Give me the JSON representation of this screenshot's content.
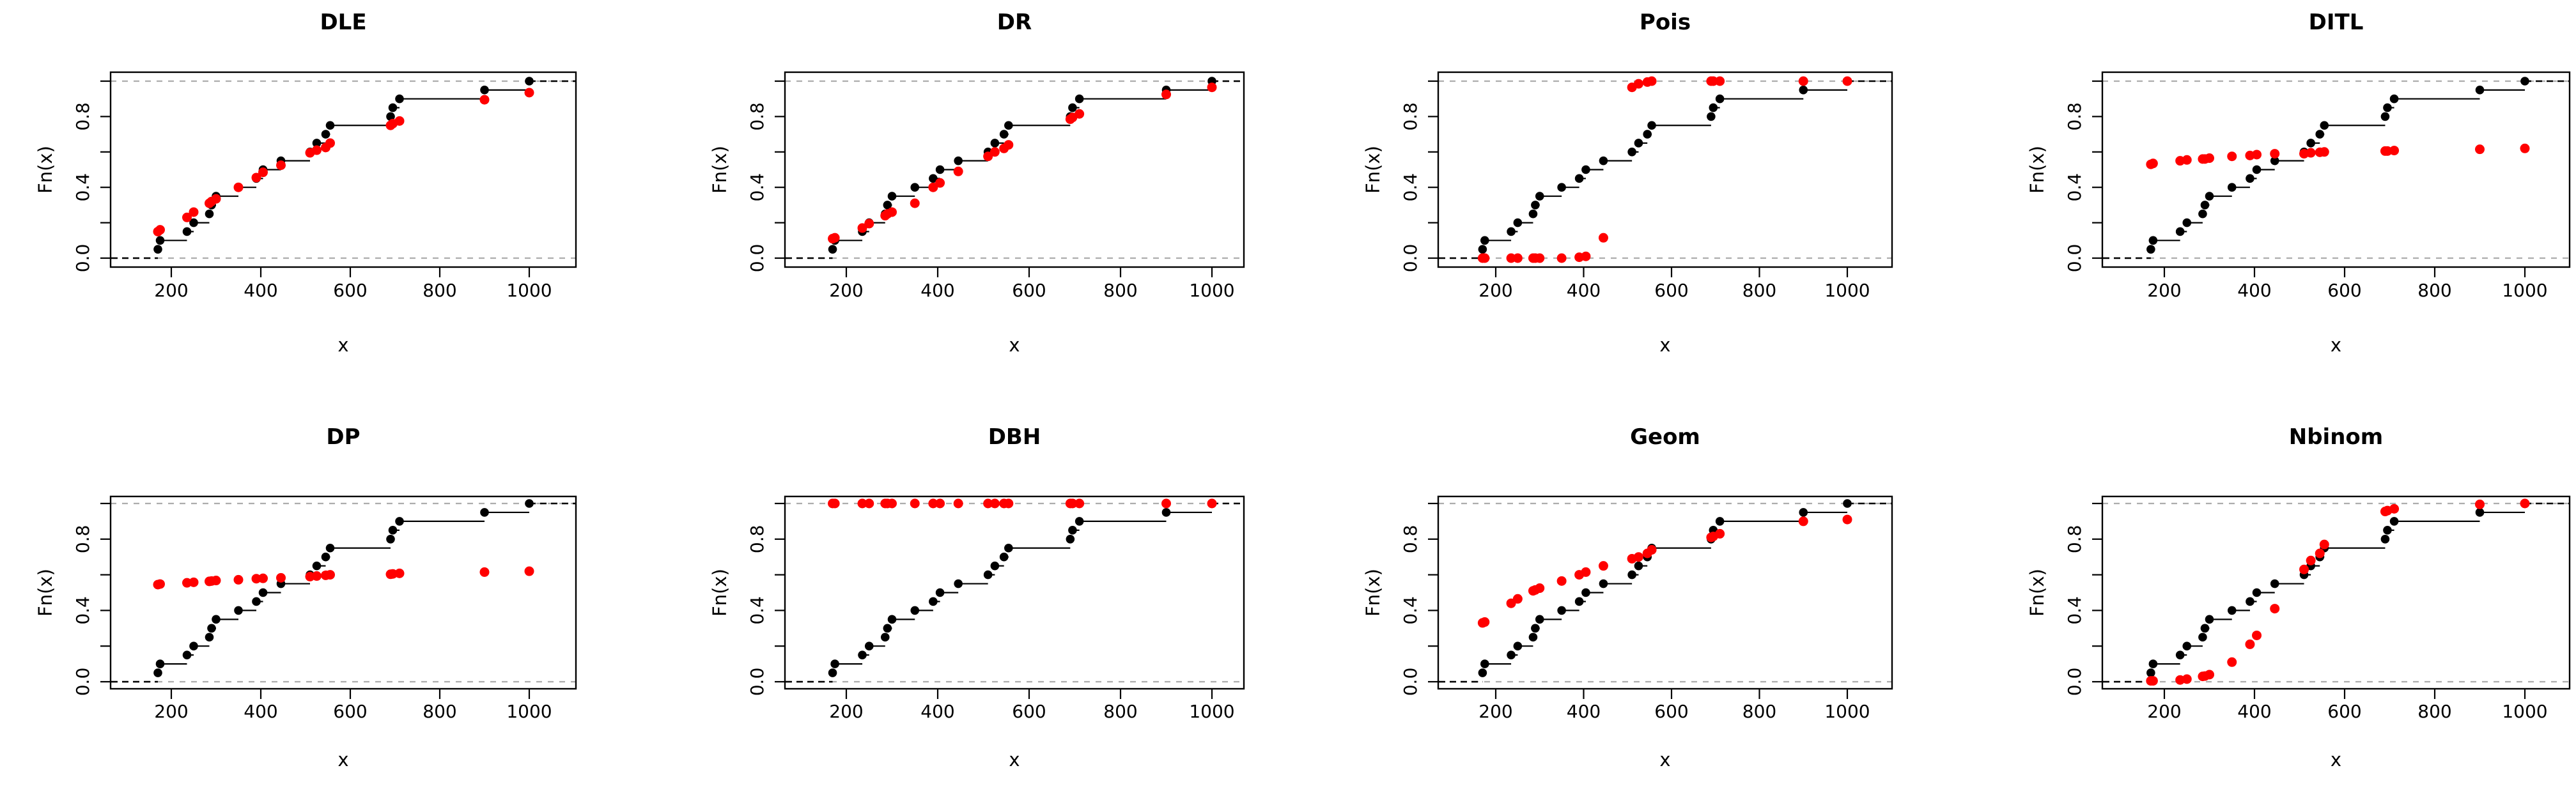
{
  "chart_data": {
    "type": "line",
    "subtype": "ecdf_step_functions_with_fitted_cdf_points",
    "grid_layout": "2 rows x 4 columns",
    "xlabel": "x",
    "ylabel": "Fn(x)",
    "x_ticks": [
      200,
      400,
      600,
      800,
      1000
    ],
    "y_ticks": [
      0.0,
      0.2,
      0.4,
      0.6,
      0.8,
      1.0
    ],
    "y_labeled_ticks": [
      {
        "value": 0.0,
        "label": "0.0"
      },
      {
        "value": 0.4,
        "label": "0.4"
      },
      {
        "value": 0.8,
        "label": "0.8"
      }
    ],
    "xlim": [
      62,
      1103
    ],
    "ylim": [
      -0.05,
      1.05
    ],
    "legend_position": "none",
    "gridlines": "horizontal dashed reference lines at Fn(x)=0 and Fn(x)=1",
    "ecdf_color": "#000000",
    "fitted_color": "#FF0000",
    "reference_dash_color": "#ADADAD",
    "sample_x": [
      170,
      175,
      235,
      250,
      285,
      290,
      300,
      350,
      390,
      405,
      445,
      510,
      525,
      545,
      555,
      690,
      695,
      710,
      900,
      1000
    ],
    "ecdf_y": [
      0.05,
      0.1,
      0.15,
      0.2,
      0.25,
      0.3,
      0.35,
      0.4,
      0.45,
      0.5,
      0.55,
      0.6,
      0.65,
      0.7,
      0.75,
      0.8,
      0.85,
      0.9,
      0.95,
      1.0
    ],
    "panels": [
      {
        "title": "DLE",
        "fitted_y": [
          0.15,
          0.16,
          0.23,
          0.26,
          0.31,
          0.32,
          0.335,
          0.4,
          0.455,
          0.485,
          0.525,
          0.595,
          0.61,
          0.625,
          0.65,
          0.75,
          0.76,
          0.775,
          0.895,
          0.935
        ]
      },
      {
        "title": "DR",
        "fitted_y": [
          0.11,
          0.115,
          0.17,
          0.195,
          0.24,
          0.25,
          0.26,
          0.31,
          0.4,
          0.425,
          0.49,
          0.575,
          0.6,
          0.62,
          0.64,
          0.785,
          0.795,
          0.815,
          0.925,
          0.965
        ]
      },
      {
        "title": "Pois",
        "fitted_y": [
          0,
          0,
          0,
          0,
          0,
          0,
          0,
          0,
          0.005,
          0.01,
          0.115,
          0.965,
          0.985,
          0.995,
          1,
          1,
          1,
          1,
          1,
          1
        ]
      },
      {
        "title": "DITL",
        "fitted_y": [
          0.53,
          0.535,
          0.55,
          0.555,
          0.56,
          0.56,
          0.565,
          0.575,
          0.58,
          0.585,
          0.59,
          0.59,
          0.595,
          0.598,
          0.6,
          0.605,
          0.605,
          0.608,
          0.615,
          0.62
        ]
      },
      {
        "title": "DP",
        "fitted_y": [
          0.545,
          0.548,
          0.555,
          0.558,
          0.563,
          0.565,
          0.568,
          0.572,
          0.578,
          0.58,
          0.583,
          0.59,
          0.593,
          0.597,
          0.6,
          0.603,
          0.605,
          0.608,
          0.615,
          0.62
        ]
      },
      {
        "title": "DBH",
        "fitted_y": [
          1,
          1,
          1,
          1,
          1,
          1,
          1,
          1,
          1,
          1,
          1,
          1,
          1,
          1,
          1,
          1,
          1,
          1,
          1,
          1
        ]
      },
      {
        "title": "Geom",
        "fitted_y": [
          0.33,
          0.335,
          0.44,
          0.465,
          0.51,
          0.515,
          0.525,
          0.565,
          0.6,
          0.615,
          0.65,
          0.69,
          0.7,
          0.72,
          0.74,
          0.81,
          0.815,
          0.83,
          0.9,
          0.91
        ]
      },
      {
        "title": "Nbinom",
        "fitted_y": [
          0.005,
          0.005,
          0.01,
          0.015,
          0.03,
          0.032,
          0.04,
          0.11,
          0.21,
          0.26,
          0.41,
          0.63,
          0.68,
          0.72,
          0.77,
          0.955,
          0.96,
          0.97,
          0.995,
          1
        ]
      }
    ]
  }
}
